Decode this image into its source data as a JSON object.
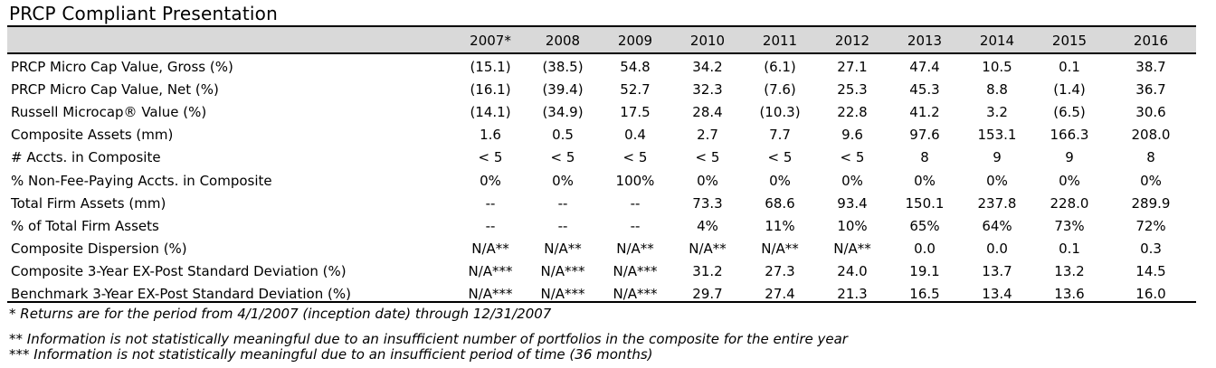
{
  "title": "PRCP Compliant Presentation",
  "columns": [
    "2007*",
    "2008",
    "2009",
    "2010",
    "2011",
    "2012",
    "2013",
    "2014",
    "2015",
    "2016"
  ],
  "rows": [
    {
      "label": "PRCP Micro Cap Value, Gross (%)",
      "values": [
        "(15.1)",
        "(38.5)",
        "54.8",
        "34.2",
        "(6.1)",
        "27.1",
        "47.4",
        "10.5",
        "0.1",
        "38.7"
      ]
    },
    {
      "label": "PRCP Micro Cap Value, Net (%)",
      "values": [
        "(16.1)",
        "(39.4)",
        "52.7",
        "32.3",
        "(7.6)",
        "25.3",
        "45.3",
        "8.8",
        "(1.4)",
        "36.7"
      ]
    },
    {
      "label": "Russell Microcap® Value (%)",
      "values": [
        "(14.1)",
        "(34.9)",
        "17.5",
        "28.4",
        "(10.3)",
        "22.8",
        "41.2",
        "3.2",
        "(6.5)",
        "30.6"
      ]
    },
    {
      "label": "Composite Assets (mm)",
      "values": [
        "1.6",
        "0.5",
        "0.4",
        "2.7",
        "7.7",
        "9.6",
        "97.6",
        "153.1",
        "166.3",
        "208.0"
      ]
    },
    {
      "label": "# Accts. in Composite",
      "values": [
        "< 5",
        "< 5",
        "< 5",
        "< 5",
        "< 5",
        "< 5",
        "8",
        "9",
        "9",
        "8"
      ]
    },
    {
      "label": "% Non-Fee-Paying Accts. in Composite",
      "values": [
        "0%",
        "0%",
        "100%",
        "0%",
        "0%",
        "0%",
        "0%",
        "0%",
        "0%",
        "0%"
      ]
    },
    {
      "label": "Total Firm Assets (mm)",
      "values": [
        "--",
        "--",
        "--",
        "73.3",
        "68.6",
        "93.4",
        "150.1",
        "237.8",
        "228.0",
        "289.9"
      ]
    },
    {
      "label": "% of Total Firm Assets",
      "values": [
        "--",
        "--",
        "--",
        "4%",
        "11%",
        "10%",
        "65%",
        "64%",
        "73%",
        "72%"
      ]
    },
    {
      "label": "Composite Dispersion (%)",
      "values": [
        "N/A**",
        "N/A**",
        "N/A**",
        "N/A**",
        "N/A**",
        "N/A**",
        "0.0",
        "0.0",
        "0.1",
        "0.3"
      ]
    },
    {
      "label": "Composite 3-Year EX-Post Standard Deviation (%)",
      "values": [
        "N/A***",
        "N/A***",
        "N/A***",
        "31.2",
        "27.3",
        "24.0",
        "19.1",
        "13.7",
        "13.2",
        "14.5"
      ]
    },
    {
      "label": "Benchmark 3-Year EX-Post Standard Deviation (%)",
      "values": [
        "N/A***",
        "N/A***",
        "N/A***",
        "29.7",
        "27.4",
        "21.3",
        "16.5",
        "13.4",
        "13.6",
        "16.0"
      ]
    }
  ],
  "footnotes": [
    "* Returns are for the period from 4/1/2007 (inception date) through 12/31/2007",
    "** Information is not statistically meaningful due to an insufficient number of portfolios in the composite for the entire year",
    "*** Information is not statistically meaningful due to an insufficient period of time (36 months)"
  ]
}
